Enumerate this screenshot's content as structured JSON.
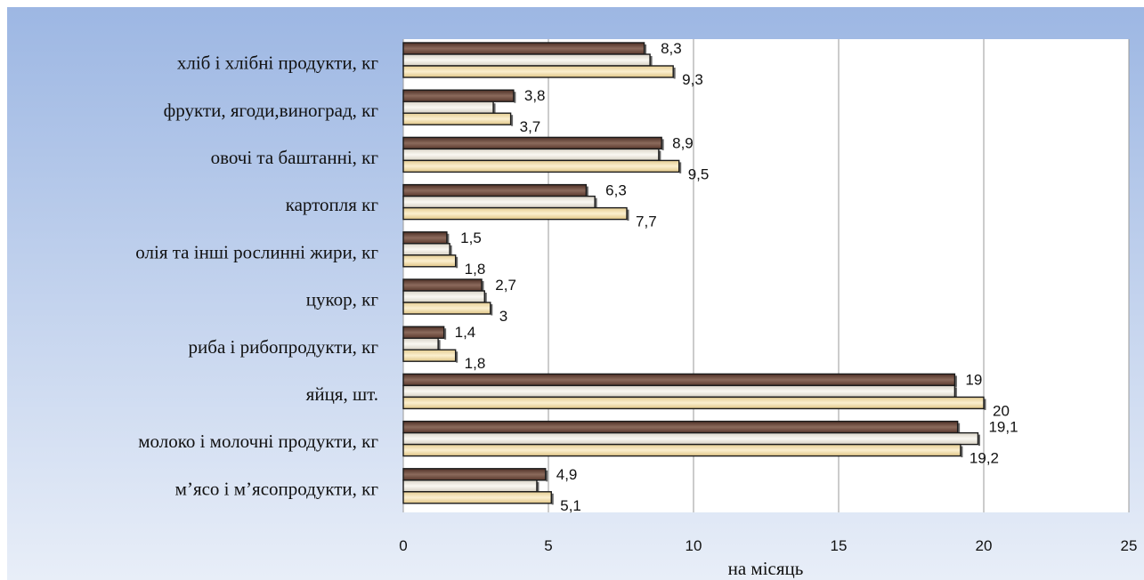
{
  "chart_data": {
    "type": "bar",
    "orientation": "horizontal",
    "categories": [
      "хліб і хлібні продукти, кг",
      "фрукти, ягоди,виноград, кг",
      "овочі та баштанні, кг",
      "картопля кг",
      "олія та інші рослинні жири, кг",
      "цукор, кг",
      "риба і рибопродукти, кг",
      "яйця, шт.",
      "молоко і молочні продукти, кг",
      "м’ясо і м’ясопродукти, кг"
    ],
    "series": [
      {
        "values": [
          8.3,
          3.8,
          8.9,
          6.3,
          1.5,
          2.7,
          1.4,
          19,
          19.1,
          4.9
        ]
      },
      {
        "values": [
          8.5,
          3.1,
          8.8,
          6.6,
          1.6,
          2.8,
          1.2,
          19,
          19.8,
          4.6
        ]
      },
      {
        "values": [
          9.3,
          3.7,
          9.5,
          7.7,
          1.8,
          3,
          1.8,
          20,
          19.2,
          5.1
        ]
      }
    ],
    "data_labels": {
      "top": [
        "8,3",
        "3,8",
        "8,9",
        "6,3",
        "1,5",
        "2,7",
        "1,4",
        "19",
        "19,1",
        "4,9"
      ],
      "bottom": [
        "9,3",
        "3,7",
        "9,5",
        "7,7",
        "1,8",
        "3",
        "1,8",
        "20",
        "19,2",
        "5,1"
      ]
    },
    "x_ticks": [
      "0",
      "5",
      "10",
      "15",
      "20",
      "25"
    ],
    "xlim": [
      0,
      25
    ],
    "xlabel": "на  місяць",
    "grid": "vertical",
    "legend": "none",
    "colors": {
      "series_1": "#6e4a3c",
      "series_2": "#efebe0",
      "series_3": "#f2deaa",
      "bar_outline": "#1a1a1a",
      "grid": "#9a9a9a",
      "background_top": "#9db7e3",
      "background_bottom": "#e8eef8"
    }
  }
}
